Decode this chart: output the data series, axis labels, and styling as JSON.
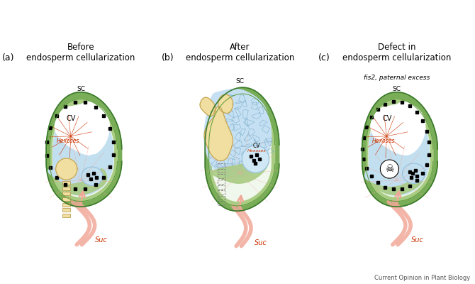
{
  "title_a": "Before\nendosperm cellularization",
  "title_b": "After\nendosperm cellularization",
  "title_c": "Defect in\nendosperm cellularization",
  "subtitle_c": "fis2, paternal excess",
  "label_a": "(a)",
  "label_b": "(b)",
  "label_c": "(c)",
  "c_outer_green": "#7aad58",
  "c_mid_green": "#a8cc82",
  "c_inner_white": "#f0f7ec",
  "c_endo_blue": "#c2dff0",
  "c_endo_blue2": "#b0d4ec",
  "c_embryo_yellow": "#f0dfa0",
  "c_suc": "#f0a898",
  "c_hexoses": "#cc3300",
  "c_cell_wall": "#90bcd8",
  "c_dk_green_line": "#3a7a2a",
  "c_background": "#ffffff",
  "c_green_bg": "#c8e0a8"
}
